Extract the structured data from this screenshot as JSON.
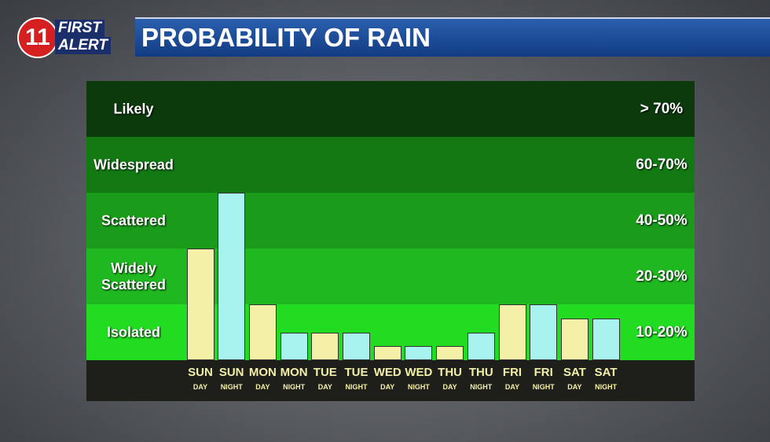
{
  "header": {
    "logo_number": "11",
    "logo_top": "FIRST",
    "logo_bottom": "ALERT"
  },
  "chart_data": {
    "type": "bar",
    "title": "PROBABILITY OF RAIN",
    "categories": [
      "SUN",
      "SUN",
      "MON",
      "MON",
      "TUE",
      "TUE",
      "WED",
      "WED",
      "THU",
      "THU",
      "FRI",
      "FRI",
      "SAT",
      "SAT"
    ],
    "periods": [
      "DAY",
      "NIGHT",
      "DAY",
      "NIGHT",
      "DAY",
      "NIGHT",
      "DAY",
      "NIGHT",
      "DAY",
      "NIGHT",
      "DAY",
      "NIGHT",
      "DAY",
      "NIGHT"
    ],
    "values": [
      2,
      3,
      1,
      0.5,
      0.5,
      0.5,
      0.25,
      0.25,
      0.25,
      0.5,
      1,
      1,
      0.75,
      0.75
    ],
    "colors": [
      "#f4f0a8",
      "#a8f2f0",
      "#f4f0a8",
      "#a8f2f0",
      "#f4f0a8",
      "#a8f2f0",
      "#f4f0a8",
      "#a8f2f0",
      "#f4f0a8",
      "#a8f2f0",
      "#f4f0a8",
      "#a8f2f0",
      "#f4f0a8",
      "#a8f2f0"
    ],
    "ylim": [
      0,
      5
    ],
    "bands": [
      {
        "label": "Isolated",
        "range": "10-20%",
        "color": "#22dc22"
      },
      {
        "label": "Widely Scattered",
        "range": "20-30%",
        "color": "#20b820"
      },
      {
        "label": "Scattered",
        "range": "40-50%",
        "color": "#1a9c1a"
      },
      {
        "label": "Widespread",
        "range": "60-70%",
        "color": "#137a13"
      },
      {
        "label": "Likely",
        "range": "> 70%",
        "color": "#0c3a0c"
      }
    ]
  }
}
